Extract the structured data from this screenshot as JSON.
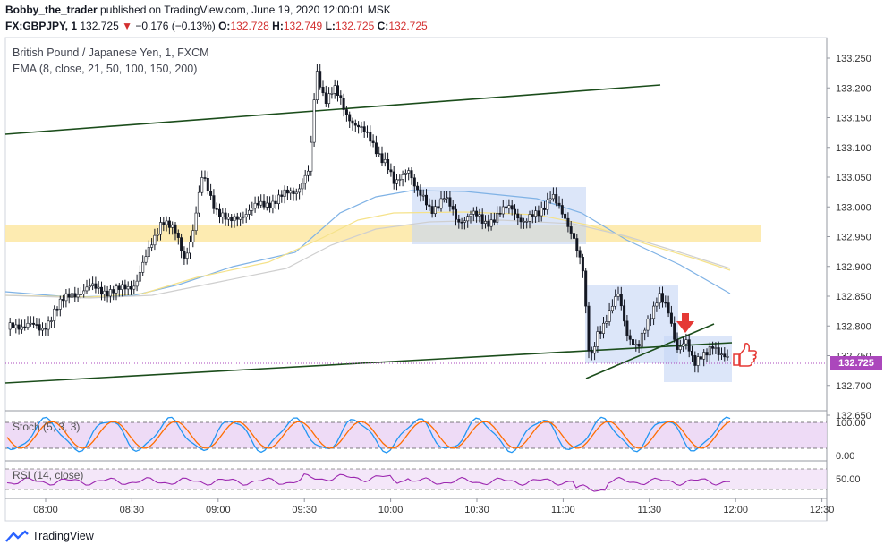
{
  "header": {
    "author": "Bobby_the_trader",
    "published": " published on TradingView.com, June 19, 2020 12:00:01 MSK",
    "symbol": "FX:GBPJPY, 1",
    "last": "132.725",
    "change": "−0.176 (−0.13%)",
    "o_label": "O:",
    "o_value": "132.728",
    "h_label": "H:",
    "h_value": "132.749",
    "l_label": "L:",
    "l_value": "132.725",
    "c_label": "C:",
    "c_value": "132.725"
  },
  "legend": {
    "title": "British Pound / Japanese Yen, 1, FXCM",
    "ema": "EMA (8, close, 21, 50, 100, 150, 200)"
  },
  "indicators": {
    "stoch": "Stoch (5, 3, 3)",
    "rsi": "RSI (14, close)"
  },
  "price_axis": [
    "133.250",
    "133.200",
    "133.150",
    "133.100",
    "133.050",
    "133.000",
    "132.950",
    "132.900",
    "132.850",
    "132.800",
    "132.750",
    "132.700",
    "132.650"
  ],
  "current_price": "132.725",
  "stoch_axis": [
    "100.00",
    "0.00"
  ],
  "rsi_axis": [
    "50.00"
  ],
  "time_axis": [
    "08:00",
    "08:30",
    "09:00",
    "09:30",
    "10:00",
    "10:30",
    "11:00",
    "11:30",
    "12:00",
    "12:30"
  ],
  "footer": {
    "brand": "TradingView"
  },
  "colors": {
    "trendline": "#1b4d1b",
    "zone": "#fde9a8",
    "box": "#c5d6f5",
    "stoch_bg": "#ecd7f5",
    "price_tag": "#ab47bc",
    "red": "#d32f2f"
  },
  "icons": [
    "arrow-down-icon",
    "thumbs-up-icon",
    "tradingview-logo-icon"
  ]
}
